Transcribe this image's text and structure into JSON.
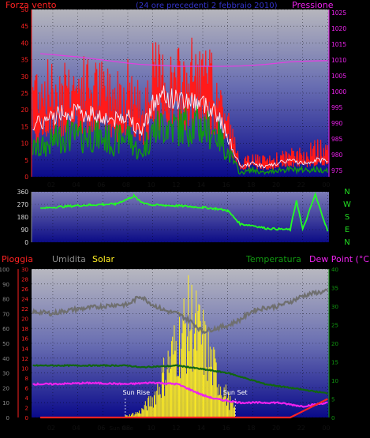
{
  "colors": {
    "background": "#000000",
    "wind": "#ff1a1a",
    "gust_avg": "#f0f0ff",
    "wind_green": "#119911",
    "pressure": "#e040e0",
    "direction": "#22ff22",
    "humidity": "#6f6f6f",
    "solar": "#ffee22",
    "temperature": "#116611",
    "dewpoint": "#ee22ee",
    "rain": "#ff2222",
    "subtitle": "#3333cc",
    "compass": "#22dd22"
  },
  "chart_data": [
    {
      "type": "line",
      "title": "Forza vento",
      "subtitle": "(24 ore precedenti 2 febbraio 2010)",
      "ylabel_right": "Pressione",
      "x_tick_labels": [
        "02",
        "04",
        "06",
        "08",
        "10",
        "12",
        "14",
        "16",
        "18",
        "20",
        "22",
        "00"
      ],
      "y_ticks_left": [
        0,
        5,
        10,
        15,
        20,
        25,
        30,
        35,
        40,
        45,
        50
      ],
      "y_ticks_right": [
        975,
        980,
        985,
        990,
        995,
        1000,
        1005,
        1010,
        1015,
        1020,
        1025
      ],
      "ylim_left": [
        0,
        50
      ],
      "ylim_right": [
        973,
        1026
      ],
      "series": [
        {
          "key": "wind_max",
          "x": [
            1,
            2,
            3,
            4,
            5,
            6,
            7,
            8,
            9,
            10,
            11,
            12,
            13,
            14,
            15,
            16,
            17,
            18,
            19,
            20,
            21,
            22,
            23,
            24
          ],
          "values": [
            30,
            28,
            31,
            29,
            30,
            28,
            27,
            30,
            22,
            33,
            32,
            31,
            34,
            32,
            30,
            18,
            4,
            6,
            5,
            6,
            7,
            7,
            9,
            9
          ]
        },
        {
          "key": "wind_avg",
          "x": [
            1,
            2,
            3,
            4,
            5,
            6,
            7,
            8,
            9,
            10,
            11,
            12,
            13,
            14,
            15,
            16,
            17,
            18,
            19,
            20,
            21,
            22,
            23,
            24
          ],
          "values": [
            16,
            18,
            20,
            19,
            19,
            18,
            17,
            19,
            13,
            22,
            24,
            23,
            23,
            22,
            20,
            12,
            3,
            4,
            3,
            4,
            5,
            4,
            5,
            5
          ]
        },
        {
          "key": "wind_min",
          "x": [
            1,
            2,
            3,
            4,
            5,
            6,
            7,
            8,
            9,
            10,
            11,
            12,
            13,
            14,
            15,
            16,
            17,
            18,
            19,
            20,
            21,
            22,
            23,
            24
          ],
          "values": [
            8,
            10,
            12,
            11,
            12,
            11,
            10,
            12,
            6,
            13,
            15,
            14,
            15,
            14,
            13,
            7,
            1,
            2,
            1,
            2,
            2,
            2,
            2,
            2
          ]
        },
        {
          "key": "pressure",
          "x": [
            1,
            2,
            3,
            4,
            5,
            6,
            7,
            8,
            9,
            10,
            11,
            12,
            13,
            14,
            15,
            16,
            17,
            18,
            19,
            20,
            21,
            22,
            23,
            24
          ],
          "values": [
            1012,
            1011.7,
            1011.3,
            1011,
            1010.5,
            1010,
            1009.5,
            1009,
            1008.6,
            1008.4,
            1008.2,
            1008,
            1008,
            1008,
            1008,
            1008,
            1008.1,
            1008.3,
            1008.6,
            1009,
            1009.4,
            1009.6,
            1009.7,
            1009.8
          ]
        }
      ]
    },
    {
      "type": "line",
      "title": "Direzione vento",
      "y_ticks_left": [
        0,
        90,
        180,
        270,
        360
      ],
      "compass": [
        "N",
        "W",
        "S",
        "E",
        "N"
      ],
      "ylim_left": [
        0,
        360
      ],
      "series": [
        {
          "key": "direction",
          "x": [
            1,
            2,
            3,
            4,
            5,
            6,
            7,
            8,
            8.5,
            9,
            10,
            11,
            12,
            13,
            14,
            15,
            16,
            17,
            18,
            19,
            20,
            21,
            21.5,
            22,
            23,
            24
          ],
          "values": [
            240,
            250,
            255,
            262,
            266,
            270,
            272,
            310,
            330,
            290,
            265,
            263,
            260,
            255,
            248,
            240,
            225,
            130,
            120,
            100,
            95,
            90,
            300,
            90,
            340,
            80
          ]
        }
      ]
    },
    {
      "type": "line",
      "legend": [
        "Pioggia",
        "Umidita",
        "Solar",
        "Temperatura",
        "Dew Point (°C)"
      ],
      "x_tick_labels": [
        "02",
        "04",
        "06",
        "08",
        "10",
        "12",
        "14",
        "16",
        "18",
        "20",
        "22",
        "00"
      ],
      "y_ticks_humidity": [
        0,
        10,
        20,
        30,
        40,
        50,
        60,
        70,
        80,
        90,
        100
      ],
      "y_ticks_rain": [
        0,
        2,
        4,
        6,
        8,
        10,
        12,
        14,
        16,
        18,
        20,
        22,
        24,
        26,
        28,
        30
      ],
      "y_ticks_temp": [
        0,
        2.5,
        5,
        7.5,
        10,
        12.5,
        15,
        17.5,
        20,
        22.5,
        25,
        27.5,
        30,
        32.5,
        35,
        37.5,
        40
      ],
      "y_tick_labels_temp": [
        "0",
        "",
        "5",
        "",
        "10",
        "",
        "15",
        "",
        "20",
        "",
        "25",
        "",
        "30",
        "",
        "35",
        "",
        "40"
      ],
      "annotations": {
        "sunrise": "Sun Rise",
        "sunset": "Sun Set",
        "sunrise_short": "Sun Rise"
      },
      "sunrise_x": 7.8,
      "sunset_x": 16.6,
      "series": [
        {
          "key": "humidity",
          "x": [
            1,
            2,
            3,
            4,
            5,
            6,
            7,
            8,
            9,
            10,
            11,
            12,
            13,
            14,
            15,
            16,
            17,
            18,
            19,
            20,
            21,
            22,
            23,
            24
          ],
          "values": [
            71,
            70,
            72,
            73,
            74,
            75,
            76,
            76,
            82,
            76,
            72,
            70,
            65,
            58,
            60,
            62,
            66,
            72,
            74,
            75,
            78,
            82,
            84,
            85
          ]
        },
        {
          "key": "temperature",
          "x": [
            1,
            2,
            3,
            4,
            5,
            6,
            7,
            8,
            9,
            10,
            11,
            12,
            13,
            14,
            15,
            16,
            17,
            18,
            19,
            20,
            21,
            22,
            23,
            24
          ],
          "values": [
            14,
            14,
            14,
            14,
            14,
            14,
            14,
            14,
            13.5,
            13.7,
            13.8,
            14,
            13.5,
            13,
            12.5,
            12,
            11,
            10,
            9,
            8.5,
            8,
            7.5,
            7,
            6.5
          ]
        },
        {
          "key": "dewpoint",
          "x": [
            1,
            2,
            3,
            4,
            5,
            6,
            7,
            8,
            9,
            10,
            11,
            12,
            13,
            14,
            15,
            16,
            17,
            18,
            19,
            20,
            21,
            22,
            23,
            24
          ],
          "values": [
            9,
            9,
            9.1,
            9.2,
            9.3,
            9.2,
            9.1,
            9,
            9.2,
            9.4,
            9.2,
            9,
            7.5,
            6,
            5,
            4.5,
            4,
            4,
            4,
            4,
            3.5,
            3,
            3.5,
            4
          ]
        },
        {
          "key": "solar",
          "x": [
            1,
            2,
            3,
            4,
            5,
            6,
            7,
            8,
            9,
            10,
            11,
            12,
            13,
            14,
            15,
            16,
            17,
            18,
            19,
            20,
            21,
            22,
            23,
            24
          ],
          "values": [
            0,
            0,
            0,
            0,
            0,
            0,
            0,
            0.5,
            1.5,
            5,
            12,
            20,
            26,
            20,
            12,
            5,
            0,
            0,
            0,
            0,
            0,
            0,
            0,
            0
          ]
        },
        {
          "key": "rain",
          "x": [
            1,
            2,
            3,
            4,
            5,
            6,
            7,
            8,
            9,
            10,
            11,
            12,
            13,
            14,
            15,
            16,
            17,
            18,
            19,
            20,
            21,
            22,
            23,
            24
          ],
          "values": [
            0,
            0,
            0,
            0,
            0,
            0,
            0,
            0,
            0,
            0,
            0,
            0,
            0,
            0,
            0,
            0,
            0,
            0,
            0,
            0,
            0,
            0.5,
            1,
            1.5
          ]
        }
      ]
    }
  ]
}
